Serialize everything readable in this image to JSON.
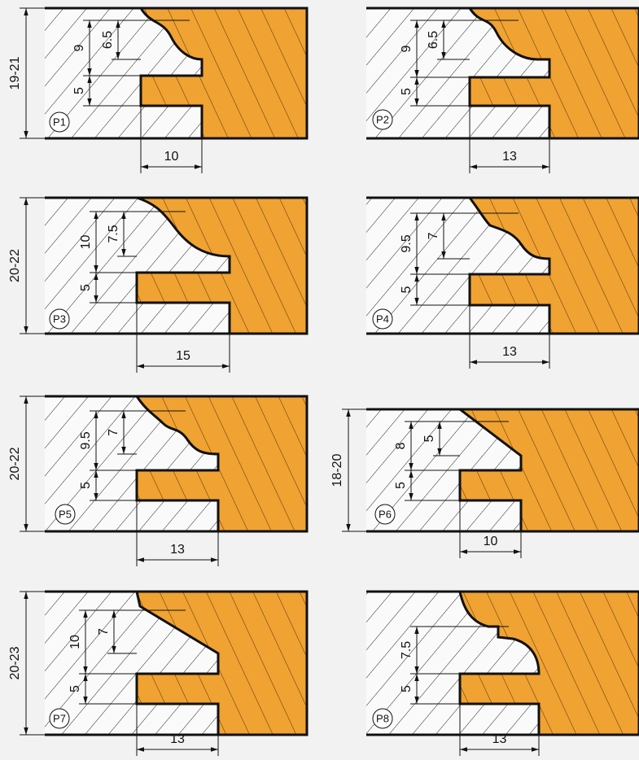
{
  "profiles": [
    {
      "label": "P1",
      "height": "19-21",
      "outer": "9",
      "inner": "6.5",
      "tongue": "5",
      "width": "10"
    },
    {
      "label": "P2",
      "outer": "9",
      "inner": "6.5",
      "tongue": "5",
      "width": "13"
    },
    {
      "label": "P3",
      "height": "20-22",
      "outer": "10",
      "inner": "7.5",
      "tongue": "5",
      "width": "15"
    },
    {
      "label": "P4",
      "outer": "9.5",
      "inner": "7",
      "tongue": "5",
      "width": "13"
    },
    {
      "label": "P5",
      "height": "20-22",
      "outer": "9.5",
      "inner": "7",
      "tongue": "5",
      "width": "13"
    },
    {
      "label": "P6",
      "height": "18-20",
      "outer": "8",
      "inner": "5",
      "tongue": "5",
      "width": "10"
    },
    {
      "label": "P7",
      "height": "20-23",
      "outer": "10",
      "inner": "7",
      "tongue": "5",
      "width": "13"
    },
    {
      "label": "P8",
      "outer": "7.5",
      "tongue": "5",
      "width": "13"
    }
  ]
}
